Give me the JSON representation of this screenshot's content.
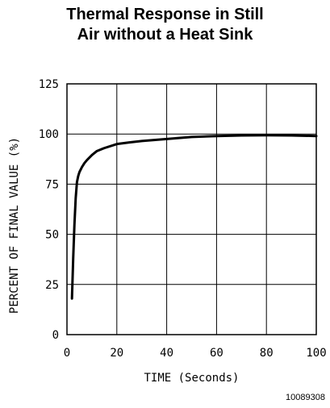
{
  "chart_data": {
    "type": "line",
    "title_lines": [
      "Thermal Response in Still",
      "Air without a Heat Sink"
    ],
    "xlabel": "TIME (Seconds)",
    "ylabel": "PERCENT OF FINAL VALUE (%)",
    "xlim": [
      0,
      100
    ],
    "ylim": [
      0,
      125
    ],
    "xticks": [
      0,
      20,
      40,
      60,
      80,
      100
    ],
    "yticks": [
      0,
      25,
      50,
      75,
      100,
      125
    ],
    "grid": true,
    "legend": "none",
    "series": [
      {
        "color": "#000000",
        "x": [
          2,
          2.5,
          3,
          3.5,
          4,
          4.5,
          5,
          6,
          7,
          8,
          10,
          12,
          15,
          20,
          25,
          30,
          40,
          50,
          60,
          70,
          80,
          90,
          100
        ],
        "y": [
          18,
          38,
          55,
          68,
          76,
          79,
          81,
          83.5,
          85.5,
          87,
          89.5,
          91.5,
          93,
          95,
          95.8,
          96.5,
          97.5,
          98.5,
          99,
          99.3,
          99.4,
          99.3,
          99
        ]
      }
    ]
  },
  "figure_id": "10089308"
}
